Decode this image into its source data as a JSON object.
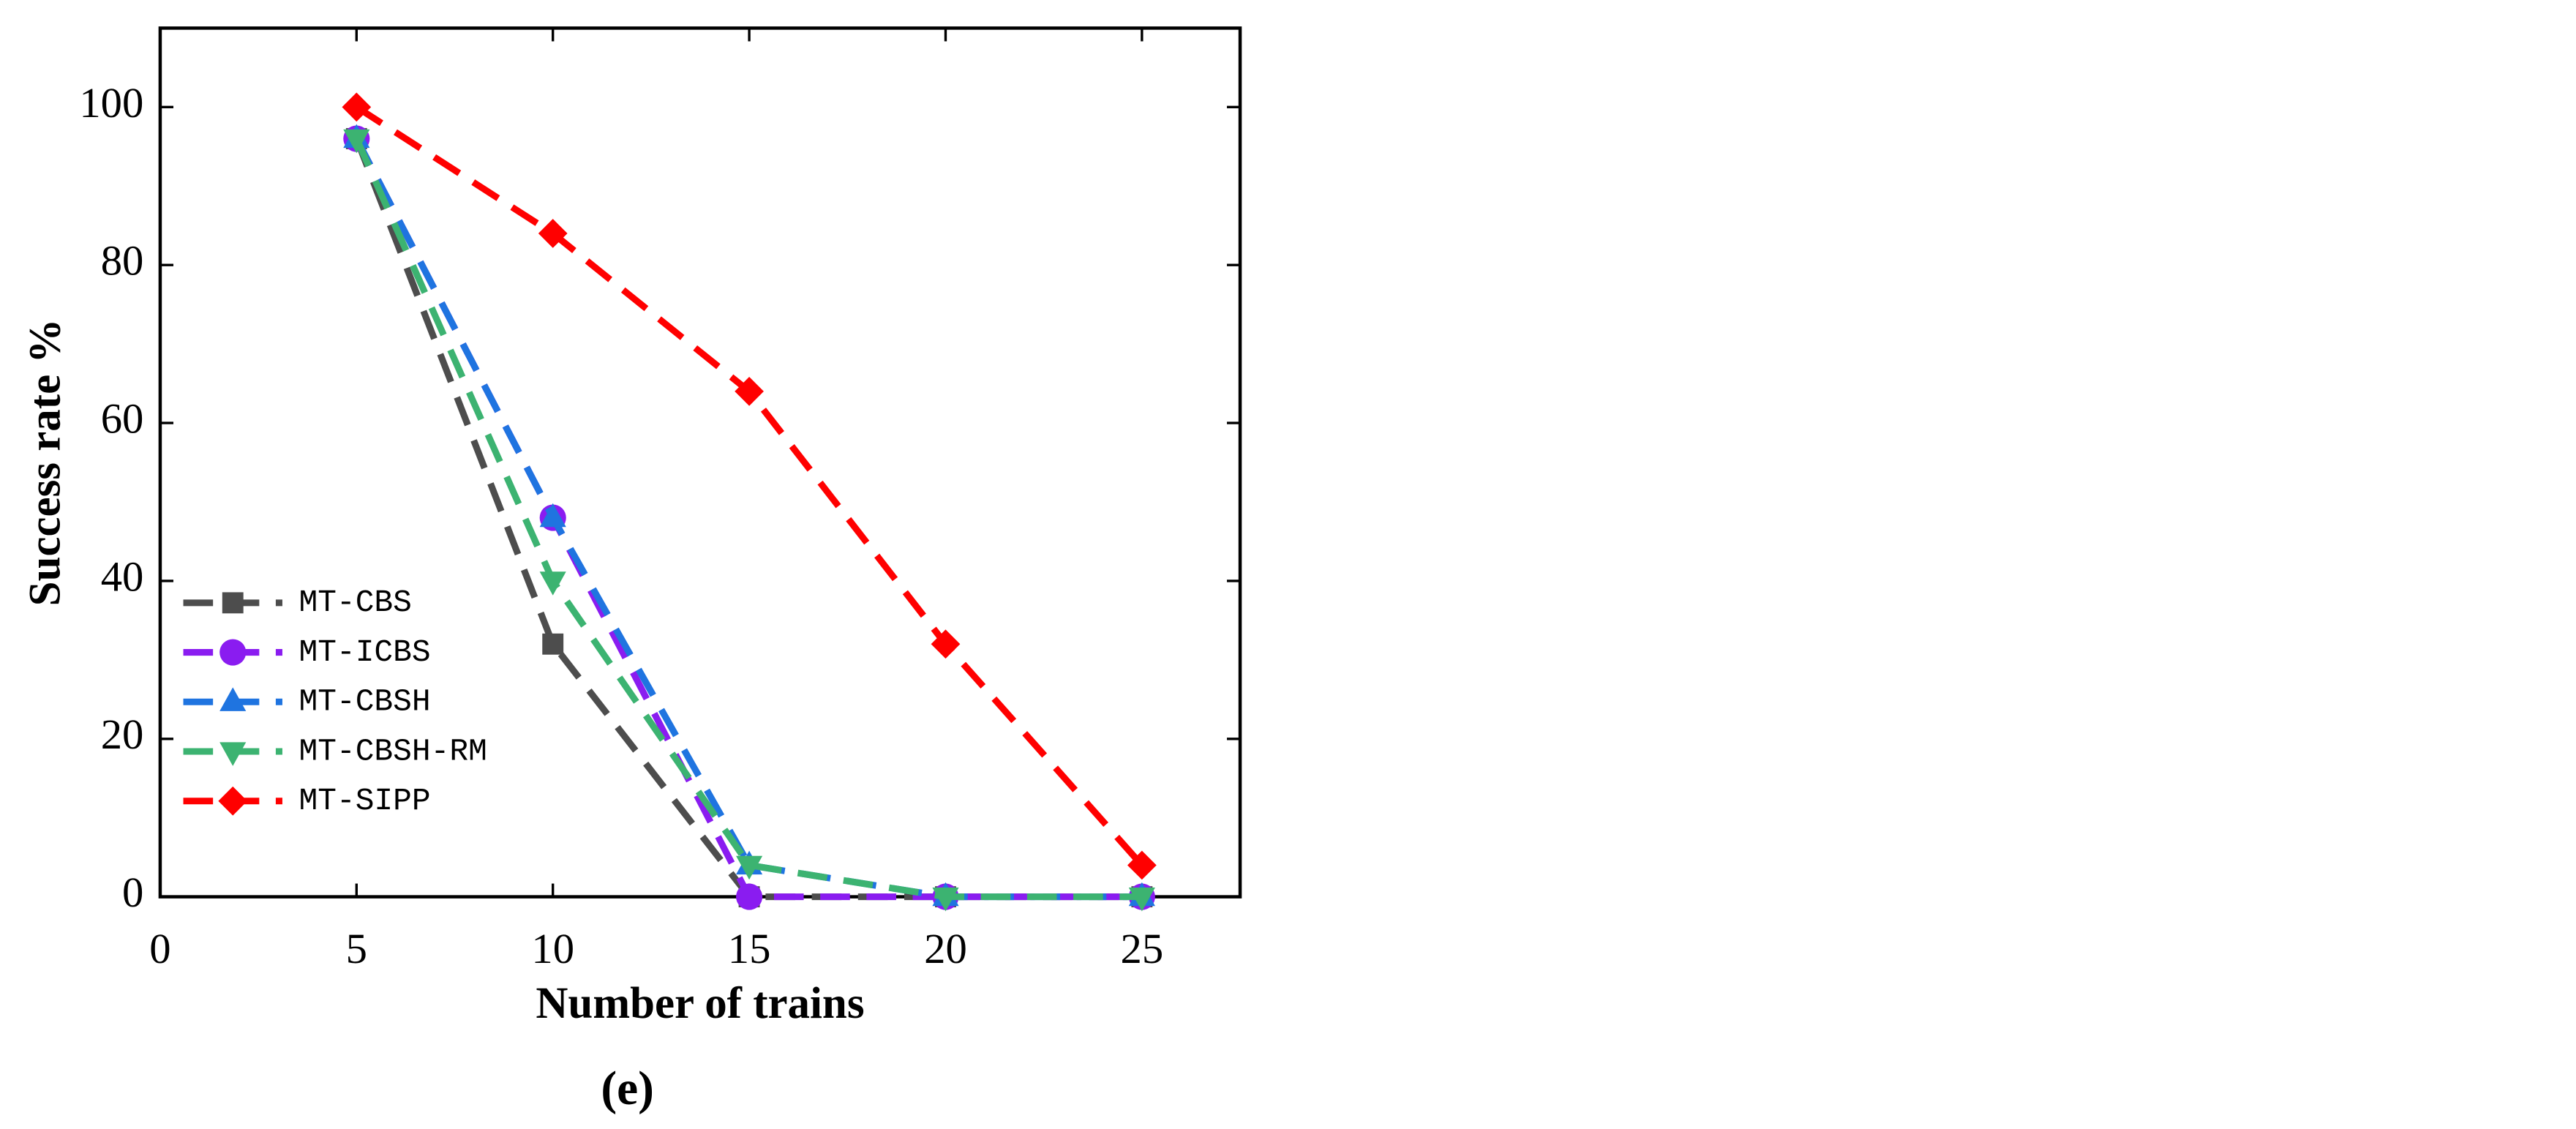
{
  "chart_data": {
    "type": "line",
    "caption": "(e)",
    "x_label": "Number of trains",
    "y_label": "Success rate %",
    "x": [
      5,
      10,
      15,
      20,
      25
    ],
    "series": [
      {
        "name": "MT-CBS",
        "color": "#4d4d4d",
        "marker": "square",
        "values": [
          96,
          32,
          0,
          0,
          0
        ]
      },
      {
        "name": "MT-ICBS",
        "color": "#8a1cf0",
        "marker": "circle",
        "values": [
          96,
          48,
          0,
          0,
          0
        ]
      },
      {
        "name": "MT-CBSH",
        "color": "#1f74e0",
        "marker": "triangle-up",
        "values": [
          96,
          48,
          4,
          0,
          0
        ]
      },
      {
        "name": "MT-CBSH-RM",
        "color": "#3cb371",
        "marker": "triangle-down",
        "values": [
          96,
          40,
          4,
          0,
          0
        ]
      },
      {
        "name": "MT-SIPP",
        "color": "#ff0000",
        "marker": "diamond",
        "values": [
          100,
          84,
          64,
          32,
          4
        ]
      }
    ],
    "xlim": [
      0,
      27.5
    ],
    "ylim": [
      0,
      110
    ],
    "xticks": [
      0,
      5,
      10,
      15,
      20,
      25
    ],
    "yticks": [
      0,
      20,
      40,
      60,
      80,
      100
    ],
    "legend": "lower left"
  }
}
